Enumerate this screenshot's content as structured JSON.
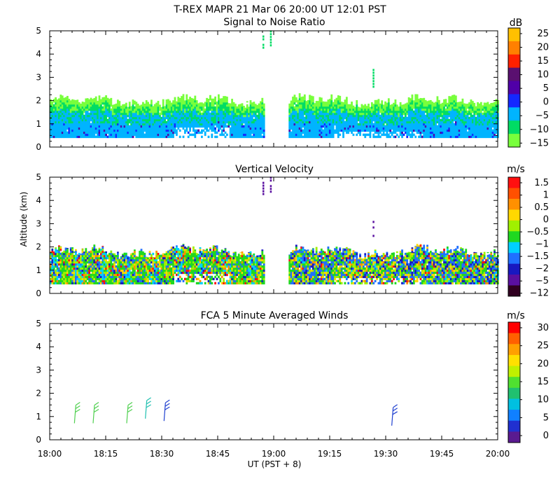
{
  "header": {
    "title": "T-REX   MAPR 21 Mar 06   20:00 UT   12:01   PST"
  },
  "axes": {
    "ylabel": "Altitude (km)",
    "xlabel": "UT  (PST + 8)",
    "x_range_minutes": [
      0,
      120
    ],
    "x_tick_labels": [
      "18:00",
      "18:15",
      "18:30",
      "18:45",
      "19:00",
      "19:15",
      "19:30",
      "19:45",
      "20:00"
    ],
    "y_range_km": [
      0,
      5
    ],
    "y_tick_labels": [
      "0",
      "1",
      "2",
      "3",
      "4",
      "5"
    ]
  },
  "chart_data": [
    {
      "type": "heatmap",
      "title": "Signal to Noise Ratio",
      "units": "dB",
      "colorbar_labels": [
        "25",
        "20",
        "15",
        "10",
        "5",
        "0",
        "−5",
        "−10",
        "−15"
      ],
      "colorbar_colors": [
        "#ffc000",
        "#ff8000",
        "#ff2000",
        "#5a1070",
        "#5000a8",
        "#1428ff",
        "#00b4ff",
        "#00dc64",
        "#78ff3c"
      ],
      "data_segments_minutes": [
        [
          0,
          57.5
        ],
        [
          64,
          120
        ]
      ],
      "echo_top_km_approx": 2.0,
      "echo_base_km": 0.4
    },
    {
      "type": "heatmap",
      "title": "Vertical Velocity",
      "units": "m/s",
      "colorbar_labels": [
        "1.5",
        "1",
        "0.5",
        "0",
        "−0.5",
        "−1",
        "−1.5",
        "−2",
        "−5",
        "−12"
      ],
      "colorbar_colors": [
        "#ff1010",
        "#ff5000",
        "#ff9000",
        "#ffd800",
        "#a0f000",
        "#20d820",
        "#00d0ff",
        "#2070ff",
        "#1818c0",
        "#5a10a0",
        "#300020"
      ],
      "data_segments_minutes": [
        [
          0,
          57.5
        ],
        [
          64,
          120
        ]
      ],
      "echo_top_km_approx": 1.8,
      "echo_base_km": 0.4
    },
    {
      "type": "scatter",
      "title": "FCA 5 Minute Averaged Winds",
      "units": "m/s",
      "colorbar_labels": [
        "30",
        "25",
        "20",
        "15",
        "10",
        "5",
        "0"
      ],
      "colorbar_colors": [
        "#ff0000",
        "#ff6000",
        "#ffa000",
        "#ffe000",
        "#c0f000",
        "#50e030",
        "#20c070",
        "#00c0e0",
        "#1080ff",
        "#2030d0",
        "#5a1a90"
      ],
      "wind_barbs": [
        {
          "time_min": 7,
          "alt_km": 1.1,
          "color": "#50d050"
        },
        {
          "time_min": 12,
          "alt_km": 1.1,
          "color": "#50d050"
        },
        {
          "time_min": 21,
          "alt_km": 1.1,
          "color": "#50d050"
        },
        {
          "time_min": 26,
          "alt_km": 1.3,
          "color": "#20c0b0"
        },
        {
          "time_min": 31,
          "alt_km": 1.2,
          "color": "#2040d0"
        },
        {
          "time_min": 92,
          "alt_km": 1.0,
          "color": "#2040d0"
        }
      ]
    }
  ]
}
